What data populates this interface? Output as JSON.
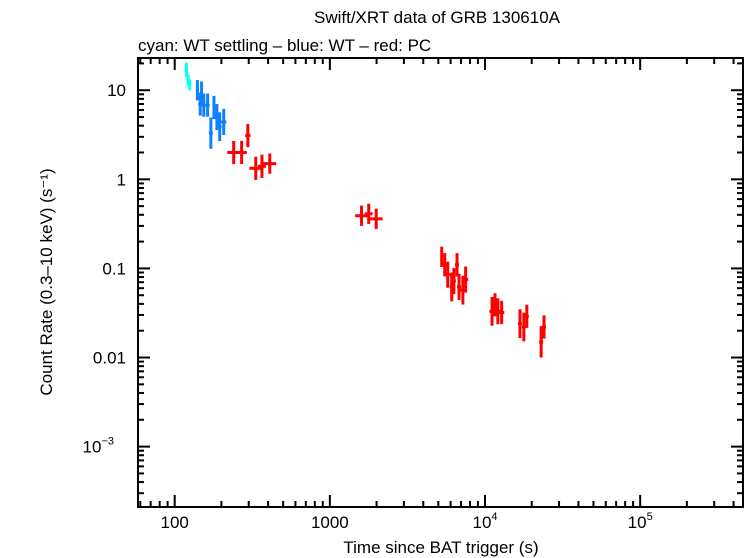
{
  "chart_data": {
    "type": "scatter",
    "title": "Swift/XRT data of GRB 130610A",
    "subtitle": "cyan: WT settling – blue: WT – red: PC",
    "xlabel": "Time since BAT trigger (s)",
    "ylabel": "Count Rate (0.3–10 keV) (s⁻¹)",
    "xscale": "log",
    "yscale": "log",
    "xlim": [
      58,
      460000
    ],
    "ylim": [
      0.00021,
      23
    ],
    "xticks": [
      {
        "v": 100,
        "label": "100"
      },
      {
        "v": 1000,
        "label": "1000"
      },
      {
        "v": 10000,
        "label": "10",
        "exp": "4"
      },
      {
        "v": 100000,
        "label": "10",
        "exp": "5"
      }
    ],
    "yticks": [
      {
        "v": 10,
        "label": "10"
      },
      {
        "v": 1,
        "label": "1"
      },
      {
        "v": 0.1,
        "label": "0.1"
      },
      {
        "v": 0.01,
        "label": "0.01"
      },
      {
        "v": 0.001,
        "label": "10",
        "exp": "−3"
      }
    ],
    "series": [
      {
        "name": "WT settling",
        "color": "#00ffff",
        "points": [
          {
            "t": 119,
            "r": 17,
            "dt": 1.02,
            "dr": 1.2
          },
          {
            "t": 122,
            "r": 13,
            "dt": 1.02,
            "dr": 1.15
          },
          {
            "t": 125,
            "r": 11.5,
            "dt": 1.02,
            "dr": 1.15
          }
        ]
      },
      {
        "name": "WT",
        "color": "#0f80ff",
        "points": [
          {
            "t": 140,
            "r": 10,
            "dt": 1.02,
            "dr": 1.3
          },
          {
            "t": 149,
            "r": 9.3,
            "dt": 1.02,
            "dr": 1.35
          },
          {
            "t": 146,
            "r": 7,
            "dt": 1.03,
            "dr": 1.35
          },
          {
            "t": 154,
            "r": 6.8,
            "dt": 1.03,
            "dr": 1.35
          },
          {
            "t": 163,
            "r": 6.8,
            "dt": 1.03,
            "dr": 1.35
          },
          {
            "t": 179,
            "r": 6.4,
            "dt": 1.02,
            "dr": 1.35
          },
          {
            "t": 171,
            "r": 3.3,
            "dt": 1.03,
            "dr": 1.5
          },
          {
            "t": 187,
            "r": 5,
            "dt": 1.03,
            "dr": 1.4
          },
          {
            "t": 195,
            "r": 3.9,
            "dt": 1.03,
            "dr": 1.45
          },
          {
            "t": 207,
            "r": 4.4,
            "dt": 1.04,
            "dr": 1.4
          }
        ]
      },
      {
        "name": "PC",
        "color": "#ff0000",
        "points": [
          {
            "t": 296,
            "r": 3.1,
            "dt": 1.04,
            "dr": 1.35
          },
          {
            "t": 240,
            "r": 2.0,
            "dt": 1.1,
            "dr": 1.35
          },
          {
            "t": 270,
            "r": 2.0,
            "dt": 1.08,
            "dr": 1.35
          },
          {
            "t": 333,
            "r": 1.33,
            "dt": 1.1,
            "dr": 1.35
          },
          {
            "t": 365,
            "r": 1.4,
            "dt": 1.06,
            "dr": 1.35
          },
          {
            "t": 410,
            "r": 1.5,
            "dt": 1.1,
            "dr": 1.3
          },
          {
            "t": 1600,
            "r": 0.39,
            "dt": 1.1,
            "dr": 1.3
          },
          {
            "t": 1780,
            "r": 0.41,
            "dt": 1.06,
            "dr": 1.3
          },
          {
            "t": 1990,
            "r": 0.36,
            "dt": 1.1,
            "dr": 1.3
          },
          {
            "t": 5260,
            "r": 0.135,
            "dt": 1.02,
            "dr": 1.3
          },
          {
            "t": 5500,
            "r": 0.11,
            "dt": 1.04,
            "dr": 1.35
          },
          {
            "t": 5750,
            "r": 0.085,
            "dt": 1.04,
            "dr": 1.4
          },
          {
            "t": 6100,
            "r": 0.062,
            "dt": 1.03,
            "dr": 1.45
          },
          {
            "t": 6300,
            "r": 0.072,
            "dt": 1.03,
            "dr": 1.4
          },
          {
            "t": 6600,
            "r": 0.11,
            "dt": 1.03,
            "dr": 1.35
          },
          {
            "t": 6800,
            "r": 0.062,
            "dt": 1.03,
            "dr": 1.4
          },
          {
            "t": 7200,
            "r": 0.057,
            "dt": 1.04,
            "dr": 1.45
          },
          {
            "t": 7500,
            "r": 0.075,
            "dt": 1.04,
            "dr": 1.4
          },
          {
            "t": 11100,
            "r": 0.033,
            "dt": 1.04,
            "dr": 1.45
          },
          {
            "t": 11600,
            "r": 0.039,
            "dt": 1.04,
            "dr": 1.35
          },
          {
            "t": 12100,
            "r": 0.033,
            "dt": 1.05,
            "dr": 1.4
          },
          {
            "t": 12800,
            "r": 0.032,
            "dt": 1.04,
            "dr": 1.35
          },
          {
            "t": 16800,
            "r": 0.024,
            "dt": 1.03,
            "dr": 1.45
          },
          {
            "t": 17800,
            "r": 0.022,
            "dt": 1.03,
            "dr": 1.45
          },
          {
            "t": 18600,
            "r": 0.029,
            "dt": 1.03,
            "dr": 1.35
          },
          {
            "t": 23000,
            "r": 0.015,
            "dt": 1.03,
            "dr": 1.5
          },
          {
            "t": 24000,
            "r": 0.022,
            "dt": 1.03,
            "dr": 1.35
          }
        ]
      }
    ]
  }
}
